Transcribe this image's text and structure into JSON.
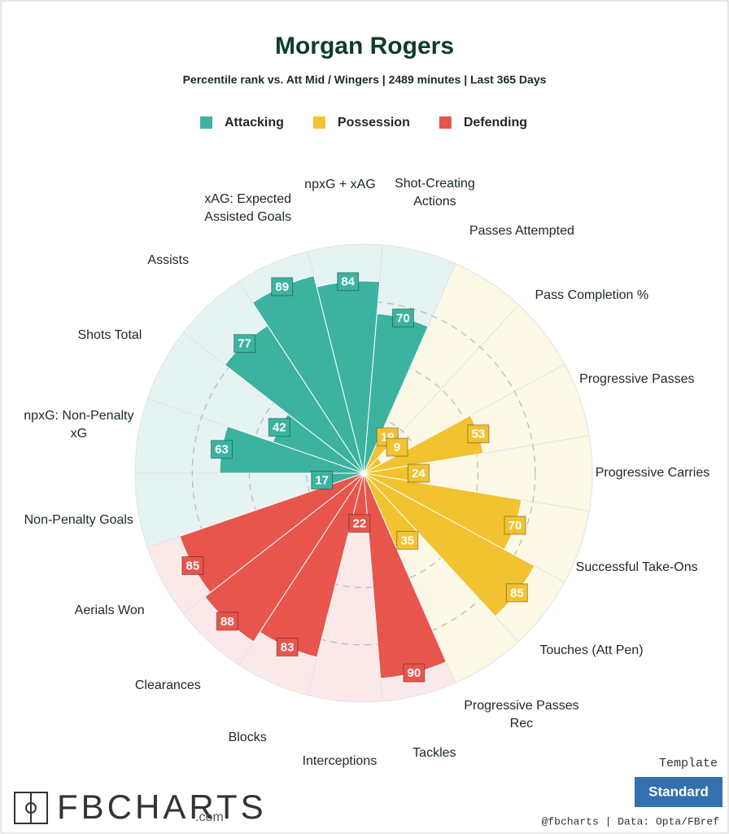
{
  "chart_data": {
    "type": "polar_bar",
    "title": "Morgan Rogers",
    "subtitle": "Percentile rank vs. Att Mid / Wingers | 2489 minutes | Last 365 Days",
    "ylim": [
      0,
      100
    ],
    "series": [
      {
        "name": "Attacking",
        "color": "#3cb3a0",
        "background_color": "#e5f4f2",
        "categories": [
          "Non-Penalty Goals",
          "npxG: Non-Penalty xG",
          "Shots Total",
          "Assists",
          "xAG: Expected Assisted Goals",
          "npxG + xAG",
          "Shot-Creating Actions"
        ],
        "values": [
          17,
          63,
          42,
          77,
          89,
          84,
          70
        ]
      },
      {
        "name": "Possession",
        "color": "#f2c330",
        "background_color": "#fcf8e6",
        "categories": [
          "Passes Attempted",
          "Pass Completion %",
          "Progressive Passes",
          "Progressive Carries",
          "Successful Take-Ons",
          "Touches (Att Pen)",
          "Progressive Passes Rec"
        ],
        "values": [
          19,
          9,
          53,
          24,
          70,
          85,
          35
        ]
      },
      {
        "name": "Defending",
        "color": "#e8554c",
        "background_color": "#fbe9e9",
        "categories": [
          "Tackles",
          "Interceptions",
          "Blocks",
          "Clearances",
          "Aerials Won"
        ],
        "values": [
          90,
          22,
          83,
          88,
          85
        ]
      }
    ]
  },
  "footer": {
    "logo": "FBCHARTS",
    "logo_suffix": ".com",
    "template_label": "Template",
    "template_button": "Standard",
    "credit": "@fbcharts | Data: Opta/FBref"
  }
}
